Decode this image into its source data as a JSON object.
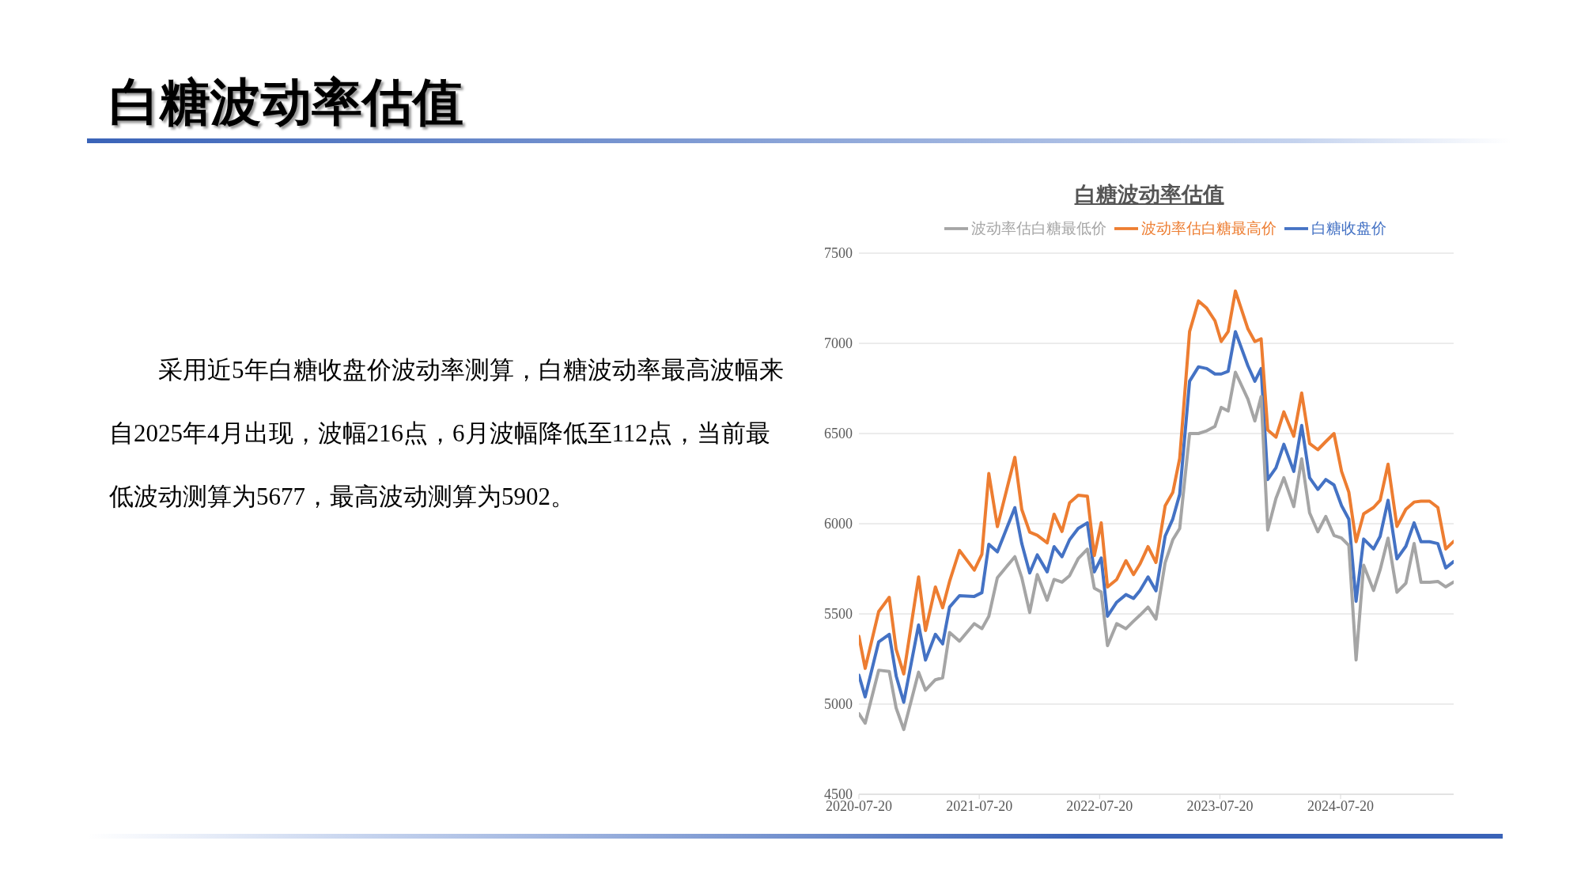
{
  "chart_data": {
    "type": "line",
    "title": "白糖波动率估值",
    "subtitle": "白糖波动率估值",
    "annotations": [
      "采用近5年白糖收盘价波动率测算，白糖波动率最高波幅来自2025年4月出现，波幅216点，6月波幅降低至112点，当前最低波动测算为5677，最高波动测算为5902。"
    ],
    "x": [
      "2020-07-20",
      "2020-08-08",
      "2020-09-18",
      "2020-10-20",
      "2020-11-10",
      "2020-12-03",
      "2021-01-17",
      "2021-02-07",
      "2021-03-09",
      "2021-03-31",
      "2021-04-21",
      "2021-05-21",
      "2021-07-05",
      "2021-07-28",
      "2021-08-18",
      "2021-09-13",
      "2021-11-05",
      "2021-11-26",
      "2021-12-20",
      "2022-01-12",
      "2022-02-11",
      "2022-03-04",
      "2022-03-28",
      "2022-04-20",
      "2022-05-16",
      "2022-06-13",
      "2022-07-04",
      "2022-07-25",
      "2022-08-13",
      "2022-09-10",
      "2022-10-08",
      "2022-10-31",
      "2022-11-19",
      "2022-12-14",
      "2023-01-07",
      "2023-02-04",
      "2023-02-27",
      "2023-03-20",
      "2023-04-19",
      "2023-05-16",
      "2023-06-10",
      "2023-07-05",
      "2023-07-24",
      "2023-08-14",
      "2023-09-05",
      "2023-10-13",
      "2023-11-03",
      "2023-11-22",
      "2023-12-12",
      "2024-01-06",
      "2024-01-30",
      "2024-02-29",
      "2024-03-24",
      "2024-04-17",
      "2024-05-12",
      "2024-06-05",
      "2024-06-30",
      "2024-07-23",
      "2024-08-14",
      "2024-09-05",
      "2024-09-28",
      "2024-10-28",
      "2024-11-17",
      "2024-12-11",
      "2025-01-07",
      "2025-02-03",
      "2025-02-28",
      "2025-03-21",
      "2025-04-16",
      "2025-05-11",
      "2025-06-04",
      "2025-06-28"
    ],
    "series": [
      {
        "name": "白糖收盘价",
        "color": "#4472c4",
        "values": [
          5160,
          5040,
          5345,
          5387,
          5156,
          5010,
          5439,
          5244,
          5387,
          5334,
          5538,
          5601,
          5597,
          5618,
          5886,
          5844,
          6089,
          5890,
          5727,
          5827,
          5733,
          5873,
          5817,
          5911,
          5974,
          6005,
          5733,
          5810,
          5487,
          5565,
          5607,
          5586,
          5628,
          5705,
          5628,
          5932,
          6026,
          6163,
          6790,
          6870,
          6860,
          6830,
          6830,
          6845,
          7065,
          6875,
          6790,
          6860,
          6245,
          6310,
          6440,
          6290,
          6545,
          6255,
          6190,
          6245,
          6215,
          6100,
          6025,
          5570,
          5915,
          5860,
          5930,
          6130,
          5805,
          5875,
          6005,
          5900,
          5900,
          5890,
          5755,
          5790
        ]
      },
      {
        "name": "波动率估白糖最高价",
        "color": "#ed7d31",
        "values": [
          5376,
          5198,
          5513,
          5592,
          5303,
          5167,
          5705,
          5408,
          5649,
          5534,
          5680,
          5852,
          5743,
          5831,
          6278,
          5984,
          6368,
          6079,
          5953,
          5936,
          5894,
          6053,
          5957,
          6116,
          6158,
          6152,
          5823,
          6005,
          5649,
          5691,
          5795,
          5718,
          5775,
          5873,
          5785,
          6100,
          6173,
          6362,
          7065,
          7235,
          7195,
          7125,
          7010,
          7065,
          7290,
          7080,
          7010,
          7025,
          6520,
          6480,
          6620,
          6485,
          6725,
          6445,
          6410,
          6455,
          6500,
          6290,
          6175,
          5900,
          6055,
          6090,
          6130,
          6330,
          5985,
          6080,
          6120,
          6125,
          6125,
          6090,
          5860,
          5902
        ]
      },
      {
        "name": "波动率估白糖最低价",
        "color": "#a5a5a5",
        "values": [
          4947,
          4894,
          5188,
          5181,
          4978,
          4859,
          5177,
          5077,
          5135,
          5146,
          5397,
          5349,
          5446,
          5418,
          5487,
          5701,
          5817,
          5701,
          5508,
          5718,
          5576,
          5691,
          5676,
          5712,
          5806,
          5859,
          5643,
          5622,
          5324,
          5446,
          5418,
          5460,
          5492,
          5538,
          5471,
          5785,
          5911,
          5974,
          6500,
          6500,
          6515,
          6540,
          6645,
          6625,
          6840,
          6690,
          6570,
          6705,
          5965,
          6140,
          6255,
          6095,
          6360,
          6060,
          5955,
          6040,
          5935,
          5920,
          5880,
          5245,
          5770,
          5630,
          5745,
          5920,
          5620,
          5670,
          5890,
          5675,
          5675,
          5680,
          5650,
          5677
        ]
      }
    ],
    "xlim": [
      "2020-07-20",
      "2025-06-28"
    ],
    "xticks": [
      "2020-07-20",
      "2021-07-20",
      "2022-07-20",
      "2023-07-20",
      "2024-07-20"
    ],
    "ylim": [
      4500,
      7500
    ],
    "yticks": [
      4500,
      5000,
      5500,
      6000,
      6500,
      7000,
      7500
    ],
    "grid": "y",
    "legend": "top",
    "marker": "none",
    "line_style": "solid"
  }
}
